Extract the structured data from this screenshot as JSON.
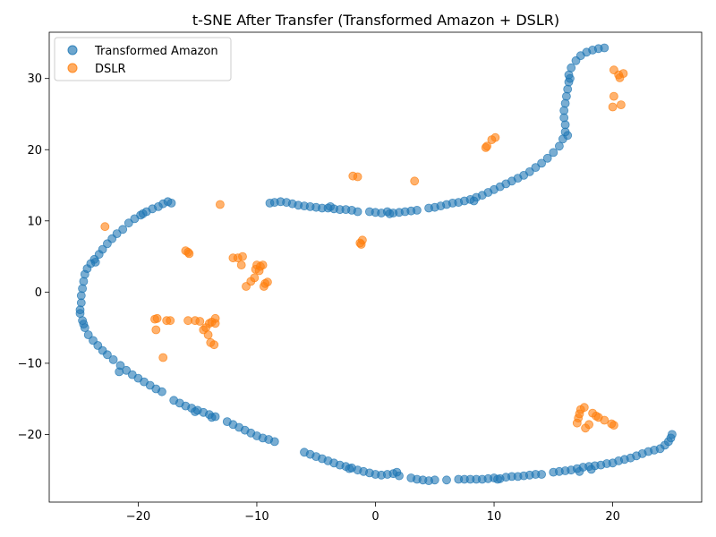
{
  "chart_data": {
    "type": "scatter",
    "title": "t-SNE After Transfer (Transformed Amazon + DSLR)",
    "xlabel": "",
    "ylabel": "",
    "xlim": [
      -27.5,
      27.5
    ],
    "ylim": [
      -29.5,
      36.5
    ],
    "xticks": [
      -20,
      -10,
      0,
      10,
      20
    ],
    "yticks": [
      -20,
      -10,
      0,
      10,
      20,
      30
    ],
    "grid": false,
    "legend_position": "top-left",
    "series": [
      {
        "name": "Transformed Amazon",
        "color": "#1f77b4",
        "points": [
          [
            -24.9,
            -2.5
          ],
          [
            -24.8,
            -1.5
          ],
          [
            -24.8,
            -0.5
          ],
          [
            -24.7,
            0.5
          ],
          [
            -24.6,
            1.5
          ],
          [
            -24.5,
            2.5
          ],
          [
            -24.3,
            3.3
          ],
          [
            -24.0,
            4.0
          ],
          [
            -23.7,
            4.6
          ],
          [
            -23.3,
            5.3
          ],
          [
            -23.0,
            6.0
          ],
          [
            -22.6,
            6.8
          ],
          [
            -22.2,
            7.5
          ],
          [
            -21.8,
            8.2
          ],
          [
            -21.3,
            8.8
          ],
          [
            -20.8,
            9.7
          ],
          [
            -20.3,
            10.3
          ],
          [
            -19.8,
            10.8
          ],
          [
            -19.3,
            11.3
          ],
          [
            -18.8,
            11.7
          ],
          [
            -18.3,
            12.0
          ],
          [
            -17.9,
            12.4
          ],
          [
            -17.5,
            12.7
          ],
          [
            -17.2,
            12.5
          ],
          [
            -24.9,
            -3.0
          ],
          [
            -24.7,
            -4.0
          ],
          [
            -24.5,
            -5.0
          ],
          [
            -24.2,
            -6.0
          ],
          [
            -23.8,
            -6.8
          ],
          [
            -23.4,
            -7.5
          ],
          [
            -23.0,
            -8.2
          ],
          [
            -22.6,
            -8.8
          ],
          [
            -22.1,
            -9.5
          ],
          [
            -21.5,
            -10.3
          ],
          [
            -21.0,
            -11.0
          ],
          [
            -20.5,
            -11.6
          ],
          [
            -20.0,
            -12.1
          ],
          [
            -19.5,
            -12.6
          ],
          [
            -19.0,
            -13.1
          ],
          [
            -18.5,
            -13.6
          ],
          [
            -18.0,
            -14.0
          ],
          [
            -17.0,
            -15.2
          ],
          [
            -16.5,
            -15.6
          ],
          [
            -16.0,
            -16.0
          ],
          [
            -15.5,
            -16.3
          ],
          [
            -15.0,
            -16.6
          ],
          [
            -14.5,
            -16.9
          ],
          [
            -14.0,
            -17.2
          ],
          [
            -13.5,
            -17.5
          ],
          [
            -12.5,
            -18.2
          ],
          [
            -12.0,
            -18.6
          ],
          [
            -11.5,
            -19.0
          ],
          [
            -11.0,
            -19.4
          ],
          [
            -10.5,
            -19.8
          ],
          [
            -10.0,
            -20.2
          ],
          [
            -9.5,
            -20.5
          ],
          [
            -9.0,
            -20.7
          ],
          [
            -8.5,
            -21.0
          ],
          [
            -6.0,
            -22.5
          ],
          [
            -5.5,
            -22.8
          ],
          [
            -5.0,
            -23.1
          ],
          [
            -4.5,
            -23.4
          ],
          [
            -4.0,
            -23.7
          ],
          [
            -3.5,
            -24.0
          ],
          [
            -3.0,
            -24.3
          ],
          [
            -2.5,
            -24.5
          ],
          [
            -2.0,
            -24.7
          ],
          [
            -1.5,
            -25.0
          ],
          [
            -1.0,
            -25.2
          ],
          [
            -0.5,
            -25.4
          ],
          [
            0.0,
            -25.6
          ],
          [
            0.5,
            -25.7
          ],
          [
            1.0,
            -25.6
          ],
          [
            1.5,
            -25.5
          ],
          [
            2.0,
            -25.8
          ],
          [
            3.0,
            -26.1
          ],
          [
            3.5,
            -26.3
          ],
          [
            4.0,
            -26.4
          ],
          [
            4.5,
            -26.5
          ],
          [
            5.0,
            -26.4
          ],
          [
            6.0,
            -26.4
          ],
          [
            7.0,
            -26.3
          ],
          [
            7.5,
            -26.3
          ],
          [
            8.0,
            -26.3
          ],
          [
            8.5,
            -26.3
          ],
          [
            9.0,
            -26.3
          ],
          [
            9.5,
            -26.2
          ],
          [
            10.0,
            -26.1
          ],
          [
            10.5,
            -26.2
          ],
          [
            11.0,
            -26.0
          ],
          [
            11.5,
            -25.9
          ],
          [
            12.0,
            -25.9
          ],
          [
            12.5,
            -25.8
          ],
          [
            13.0,
            -25.7
          ],
          [
            13.5,
            -25.6
          ],
          [
            14.0,
            -25.6
          ],
          [
            15.0,
            -25.3
          ],
          [
            15.5,
            -25.2
          ],
          [
            16.0,
            -25.1
          ],
          [
            16.5,
            -25.0
          ],
          [
            17.0,
            -24.8
          ],
          [
            17.5,
            -24.6
          ],
          [
            18.0,
            -24.5
          ],
          [
            18.5,
            -24.4
          ],
          [
            19.0,
            -24.3
          ],
          [
            19.5,
            -24.1
          ],
          [
            20.0,
            -24.0
          ],
          [
            20.5,
            -23.7
          ],
          [
            21.0,
            -23.5
          ],
          [
            21.5,
            -23.3
          ],
          [
            22.0,
            -23.0
          ],
          [
            22.5,
            -22.7
          ],
          [
            23.0,
            -22.4
          ],
          [
            23.5,
            -22.2
          ],
          [
            24.0,
            -22.0
          ],
          [
            24.4,
            -21.5
          ],
          [
            24.7,
            -21.0
          ],
          [
            24.9,
            -20.5
          ],
          [
            25.0,
            -20.0
          ],
          [
            -8.9,
            12.5
          ],
          [
            -8.5,
            12.6
          ],
          [
            -8.0,
            12.7
          ],
          [
            -7.5,
            12.6
          ],
          [
            -7.0,
            12.4
          ],
          [
            -6.5,
            12.2
          ],
          [
            -6.0,
            12.1
          ],
          [
            -5.5,
            12.0
          ],
          [
            -5.0,
            11.9
          ],
          [
            -4.5,
            11.8
          ],
          [
            -4.0,
            11.8
          ],
          [
            -3.5,
            11.7
          ],
          [
            -3.0,
            11.6
          ],
          [
            -2.5,
            11.6
          ],
          [
            -2.0,
            11.5
          ],
          [
            -1.5,
            11.3
          ],
          [
            -0.5,
            11.3
          ],
          [
            0.0,
            11.2
          ],
          [
            0.5,
            11.1
          ],
          [
            1.0,
            11.3
          ],
          [
            1.5,
            11.1
          ],
          [
            2.0,
            11.2
          ],
          [
            2.5,
            11.3
          ],
          [
            3.0,
            11.4
          ],
          [
            3.5,
            11.5
          ],
          [
            4.5,
            11.8
          ],
          [
            5.0,
            11.9
          ],
          [
            5.5,
            12.1
          ],
          [
            6.0,
            12.3
          ],
          [
            6.5,
            12.5
          ],
          [
            7.0,
            12.6
          ],
          [
            7.5,
            12.8
          ],
          [
            8.0,
            13.0
          ],
          [
            8.5,
            13.3
          ],
          [
            9.0,
            13.6
          ],
          [
            9.5,
            14.0
          ],
          [
            10.0,
            14.4
          ],
          [
            10.5,
            14.8
          ],
          [
            11.0,
            15.2
          ],
          [
            11.5,
            15.6
          ],
          [
            12.0,
            16.0
          ],
          [
            12.5,
            16.4
          ],
          [
            13.0,
            16.9
          ],
          [
            13.5,
            17.5
          ],
          [
            14.0,
            18.1
          ],
          [
            14.5,
            18.8
          ],
          [
            15.0,
            19.6
          ],
          [
            15.5,
            20.5
          ],
          [
            15.8,
            21.5
          ],
          [
            16.0,
            22.5
          ],
          [
            16.0,
            23.5
          ],
          [
            15.9,
            24.5
          ],
          [
            15.9,
            25.5
          ],
          [
            16.0,
            26.5
          ],
          [
            16.1,
            27.5
          ],
          [
            16.2,
            28.5
          ],
          [
            16.3,
            29.5
          ],
          [
            16.3,
            30.5
          ],
          [
            16.5,
            31.5
          ],
          [
            16.9,
            32.5
          ],
          [
            17.3,
            33.2
          ],
          [
            17.8,
            33.7
          ],
          [
            18.3,
            34.0
          ],
          [
            18.8,
            34.2
          ],
          [
            19.3,
            34.3
          ],
          [
            -24.6,
            -4.5
          ],
          [
            -21.6,
            -11.2
          ],
          [
            -15.2,
            -16.8
          ],
          [
            -13.8,
            -17.6
          ],
          [
            -2.2,
            -24.8
          ],
          [
            1.8,
            -25.3
          ],
          [
            10.3,
            -26.3
          ],
          [
            17.2,
            -25.2
          ],
          [
            18.2,
            -24.9
          ],
          [
            -23.6,
            4.2
          ],
          [
            -19.6,
            11.0
          ],
          [
            -3.8,
            12.0
          ],
          [
            1.2,
            11.0
          ],
          [
            8.3,
            12.8
          ],
          [
            16.2,
            22.0
          ],
          [
            16.4,
            30.0
          ]
        ]
      },
      {
        "name": "DSLR",
        "color": "#ff7f0e",
        "points": [
          [
            -22.8,
            9.2
          ],
          [
            -13.1,
            12.3
          ],
          [
            -1.9,
            16.3
          ],
          [
            -1.5,
            16.2
          ],
          [
            3.3,
            15.6
          ],
          [
            9.3,
            20.3
          ],
          [
            9.4,
            20.5
          ],
          [
            9.8,
            21.4
          ],
          [
            10.1,
            21.7
          ],
          [
            20.1,
            31.2
          ],
          [
            20.5,
            30.5
          ],
          [
            20.6,
            30.1
          ],
          [
            20.9,
            30.7
          ],
          [
            20.1,
            27.5
          ],
          [
            20.0,
            26.0
          ],
          [
            20.7,
            26.3
          ],
          [
            -16.0,
            5.8
          ],
          [
            -15.8,
            5.6
          ],
          [
            -15.7,
            5.4
          ],
          [
            -12.0,
            4.8
          ],
          [
            -11.6,
            4.8
          ],
          [
            -11.2,
            5.0
          ],
          [
            -11.3,
            3.8
          ],
          [
            -10.9,
            0.8
          ],
          [
            -10.5,
            1.5
          ],
          [
            -10.2,
            2.0
          ],
          [
            -10.0,
            3.8
          ],
          [
            -9.8,
            3.0
          ],
          [
            -9.7,
            3.6
          ],
          [
            -9.5,
            3.8
          ],
          [
            -9.3,
            1.2
          ],
          [
            -9.4,
            0.8
          ],
          [
            -9.1,
            1.4
          ],
          [
            -10.1,
            3.2
          ],
          [
            -1.2,
            6.7
          ],
          [
            -1.1,
            7.3
          ],
          [
            -1.3,
            6.9
          ],
          [
            -18.6,
            -3.8
          ],
          [
            -18.4,
            -3.7
          ],
          [
            -17.6,
            -4.0
          ],
          [
            -17.3,
            -4.0
          ],
          [
            -18.5,
            -5.3
          ],
          [
            -17.9,
            -9.2
          ],
          [
            -15.8,
            -4.0
          ],
          [
            -15.2,
            -4.0
          ],
          [
            -14.8,
            -4.1
          ],
          [
            -14.5,
            -5.3
          ],
          [
            -14.0,
            -4.4
          ],
          [
            -13.8,
            -4.2
          ],
          [
            -13.5,
            -3.7
          ],
          [
            -13.5,
            -4.4
          ],
          [
            -14.3,
            -5.0
          ],
          [
            -14.1,
            -6.0
          ],
          [
            -13.9,
            -7.1
          ],
          [
            -13.6,
            -7.4
          ],
          [
            17.0,
            -18.4
          ],
          [
            17.1,
            -17.7
          ],
          [
            17.2,
            -17.1
          ],
          [
            17.3,
            -16.5
          ],
          [
            17.6,
            -16.2
          ],
          [
            17.7,
            -19.1
          ],
          [
            18.0,
            -18.6
          ],
          [
            18.3,
            -17.0
          ],
          [
            18.6,
            -17.4
          ],
          [
            18.8,
            -17.6
          ],
          [
            19.3,
            -18.0
          ],
          [
            19.9,
            -18.5
          ],
          [
            20.1,
            -18.7
          ]
        ]
      }
    ]
  }
}
